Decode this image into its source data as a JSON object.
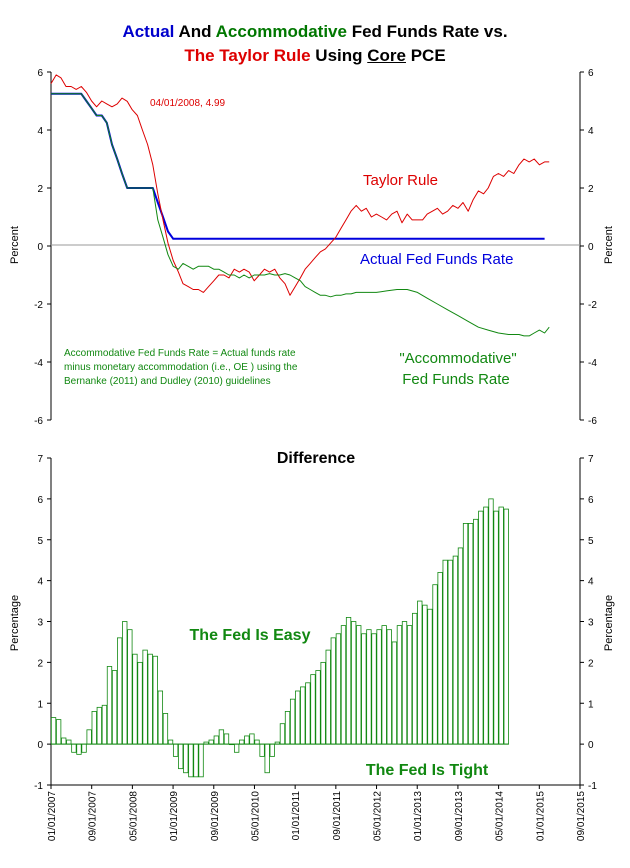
{
  "title": {
    "line1": {
      "part1": "Actual",
      "part2": " And ",
      "part3": "Accommodative",
      "part4": " Fed Funds Rate vs."
    },
    "line2": {
      "part1": "The Taylor Rule",
      "part2": " Using ",
      "part3": "Core",
      "part4": " PCE"
    }
  },
  "colors": {
    "actual": "#0000dd",
    "accommodative": "#118811",
    "taylor": "#dd0000",
    "bars": "#118811"
  },
  "chart_data": [
    {
      "type": "line",
      "ylabel": "Percent",
      "ylim": [
        -6,
        6
      ],
      "yticks": [
        -6,
        -4,
        -2,
        0,
        2,
        4,
        6
      ],
      "xlim": [
        "2007-01-01",
        "2015-09-01"
      ],
      "annotation_point": "04/01/2008, 4.99",
      "note": [
        "Accommodative Fed Funds Rate = Actual funds rate",
        "minus monetary accommodation (i.e., OE ) using the",
        "Bernanke (2011) and Dudley (2010) guidelines"
      ],
      "labels": {
        "taylor": "Taylor Rule",
        "actual": "Actual Fed Funds Rate",
        "accommodative_1": "\"Accommodative\"",
        "accommodative_2": "Fed Funds Rate"
      },
      "series": [
        {
          "name": "Actual Fed Funds Rate",
          "points": [
            [
              "2007-01-01",
              5.25
            ],
            [
              "2007-04-01",
              5.25
            ],
            [
              "2007-07-01",
              5.25
            ],
            [
              "2007-08-01",
              5.0
            ],
            [
              "2007-09-01",
              4.75
            ],
            [
              "2007-10-01",
              4.5
            ],
            [
              "2007-11-01",
              4.5
            ],
            [
              "2007-12-01",
              4.25
            ],
            [
              "2008-01-01",
              3.5
            ],
            [
              "2008-02-01",
              3.0
            ],
            [
              "2008-03-01",
              2.5
            ],
            [
              "2008-04-01",
              2.0
            ],
            [
              "2008-06-01",
              2.0
            ],
            [
              "2008-09-01",
              2.0
            ],
            [
              "2008-10-01",
              1.5
            ],
            [
              "2008-11-01",
              1.0
            ],
            [
              "2008-12-01",
              0.5
            ],
            [
              "2009-01-01",
              0.25
            ],
            [
              "2015-01-01",
              0.25
            ],
            [
              "2015-02-01",
              0.25
            ]
          ]
        },
        {
          "name": "Taylor Rule",
          "points": [
            [
              "2007-01-01",
              5.6
            ],
            [
              "2007-02-01",
              5.9
            ],
            [
              "2007-03-01",
              5.8
            ],
            [
              "2007-04-01",
              5.5
            ],
            [
              "2007-05-01",
              5.5
            ],
            [
              "2007-06-01",
              5.4
            ],
            [
              "2007-07-01",
              5.5
            ],
            [
              "2007-08-01",
              5.3
            ],
            [
              "2007-09-01",
              5.0
            ],
            [
              "2007-10-01",
              4.8
            ],
            [
              "2007-11-01",
              5.0
            ],
            [
              "2007-12-01",
              4.9
            ],
            [
              "2008-01-01",
              4.8
            ],
            [
              "2008-02-01",
              4.9
            ],
            [
              "2008-03-01",
              5.1
            ],
            [
              "2008-04-01",
              4.99
            ],
            [
              "2008-05-01",
              4.7
            ],
            [
              "2008-06-01",
              4.5
            ],
            [
              "2008-07-01",
              4.0
            ],
            [
              "2008-08-01",
              3.5
            ],
            [
              "2008-09-01",
              2.8
            ],
            [
              "2008-10-01",
              1.8
            ],
            [
              "2008-11-01",
              0.9
            ],
            [
              "2008-12-01",
              0.1
            ],
            [
              "2009-01-01",
              -0.5
            ],
            [
              "2009-02-01",
              -0.9
            ],
            [
              "2009-03-01",
              -1.3
            ],
            [
              "2009-04-01",
              -1.4
            ],
            [
              "2009-05-01",
              -1.5
            ],
            [
              "2009-06-01",
              -1.5
            ],
            [
              "2009-07-01",
              -1.6
            ],
            [
              "2009-08-01",
              -1.4
            ],
            [
              "2009-09-01",
              -1.2
            ],
            [
              "2009-10-01",
              -1.0
            ],
            [
              "2009-11-01",
              -1.0
            ],
            [
              "2009-12-01",
              -1.1
            ],
            [
              "2010-01-01",
              -0.8
            ],
            [
              "2010-02-01",
              -0.9
            ],
            [
              "2010-03-01",
              -0.8
            ],
            [
              "2010-04-01",
              -0.9
            ],
            [
              "2010-05-01",
              -1.2
            ],
            [
              "2010-06-01",
              -1.0
            ],
            [
              "2010-07-01",
              -0.8
            ],
            [
              "2010-08-01",
              -0.9
            ],
            [
              "2010-09-01",
              -0.8
            ],
            [
              "2010-10-01",
              -1.1
            ],
            [
              "2010-11-01",
              -1.3
            ],
            [
              "2010-12-01",
              -1.7
            ],
            [
              "2011-01-01",
              -1.4
            ],
            [
              "2011-02-01",
              -1.1
            ],
            [
              "2011-03-01",
              -0.8
            ],
            [
              "2011-04-01",
              -0.6
            ],
            [
              "2011-05-01",
              -0.4
            ],
            [
              "2011-06-01",
              -0.2
            ],
            [
              "2011-07-01",
              -0.1
            ],
            [
              "2011-08-01",
              0.1
            ],
            [
              "2011-09-01",
              0.3
            ],
            [
              "2011-10-01",
              0.6
            ],
            [
              "2011-11-01",
              0.9
            ],
            [
              "2011-12-01",
              1.2
            ],
            [
              "2012-01-01",
              1.4
            ],
            [
              "2012-02-01",
              1.2
            ],
            [
              "2012-03-01",
              1.3
            ],
            [
              "2012-04-01",
              1.0
            ],
            [
              "2012-05-01",
              1.1
            ],
            [
              "2012-06-01",
              1.0
            ],
            [
              "2012-07-01",
              0.9
            ],
            [
              "2012-08-01",
              1.1
            ],
            [
              "2012-09-01",
              1.2
            ],
            [
              "2012-10-01",
              0.8
            ],
            [
              "2012-11-01",
              1.1
            ],
            [
              "2012-12-01",
              0.9
            ],
            [
              "2013-01-01",
              0.9
            ],
            [
              "2013-02-01",
              0.9
            ],
            [
              "2013-03-01",
              1.1
            ],
            [
              "2013-04-01",
              1.2
            ],
            [
              "2013-05-01",
              1.3
            ],
            [
              "2013-06-01",
              1.1
            ],
            [
              "2013-07-01",
              1.2
            ],
            [
              "2013-08-01",
              1.4
            ],
            [
              "2013-09-01",
              1.3
            ],
            [
              "2013-10-01",
              1.5
            ],
            [
              "2013-11-01",
              1.2
            ],
            [
              "2013-12-01",
              1.6
            ],
            [
              "2014-01-01",
              1.9
            ],
            [
              "2014-02-01",
              1.8
            ],
            [
              "2014-03-01",
              2.0
            ],
            [
              "2014-04-01",
              2.4
            ],
            [
              "2014-05-01",
              2.5
            ],
            [
              "2014-06-01",
              2.4
            ],
            [
              "2014-07-01",
              2.6
            ],
            [
              "2014-08-01",
              2.5
            ],
            [
              "2014-09-01",
              2.8
            ],
            [
              "2014-10-01",
              3.0
            ],
            [
              "2014-11-01",
              2.9
            ],
            [
              "2014-12-01",
              3.0
            ],
            [
              "2015-01-01",
              2.8
            ],
            [
              "2015-02-01",
              2.9
            ],
            [
              "2015-03-01",
              2.9
            ]
          ]
        },
        {
          "name": "Accommodative Fed Funds Rate",
          "points": [
            [
              "2007-01-01",
              5.25
            ],
            [
              "2007-07-01",
              5.25
            ],
            [
              "2007-08-01",
              5.0
            ],
            [
              "2007-09-01",
              4.75
            ],
            [
              "2007-10-01",
              4.5
            ],
            [
              "2007-11-01",
              4.5
            ],
            [
              "2007-12-01",
              4.25
            ],
            [
              "2008-01-01",
              3.5
            ],
            [
              "2008-02-01",
              3.0
            ],
            [
              "2008-03-01",
              2.5
            ],
            [
              "2008-04-01",
              2.0
            ],
            [
              "2008-09-01",
              2.0
            ],
            [
              "2008-10-01",
              0.9
            ],
            [
              "2008-11-01",
              0.3
            ],
            [
              "2008-12-01",
              -0.3
            ],
            [
              "2009-01-01",
              -0.7
            ],
            [
              "2009-02-01",
              -0.8
            ],
            [
              "2009-03-01",
              -0.6
            ],
            [
              "2009-04-01",
              -0.7
            ],
            [
              "2009-05-01",
              -0.8
            ],
            [
              "2009-06-01",
              -0.7
            ],
            [
              "2009-07-01",
              -0.7
            ],
            [
              "2009-08-01",
              -0.7
            ],
            [
              "2009-09-01",
              -0.8
            ],
            [
              "2009-10-01",
              -0.8
            ],
            [
              "2009-11-01",
              -0.9
            ],
            [
              "2009-12-01",
              -1.0
            ],
            [
              "2010-01-01",
              -1.0
            ],
            [
              "2010-02-01",
              -1.1
            ],
            [
              "2010-03-01",
              -1.0
            ],
            [
              "2010-04-01",
              -1.1
            ],
            [
              "2010-05-01",
              -1.0
            ],
            [
              "2010-06-01",
              -1.0
            ],
            [
              "2010-07-01",
              -1.0
            ],
            [
              "2010-08-01",
              -0.95
            ],
            [
              "2010-09-01",
              -1.0
            ],
            [
              "2010-10-01",
              -1.0
            ],
            [
              "2010-11-01",
              -0.95
            ],
            [
              "2010-12-01",
              -1.0
            ],
            [
              "2011-01-01",
              -1.1
            ],
            [
              "2011-02-01",
              -1.2
            ],
            [
              "2011-03-01",
              -1.4
            ],
            [
              "2011-04-01",
              -1.5
            ],
            [
              "2011-05-01",
              -1.6
            ],
            [
              "2011-06-01",
              -1.7
            ],
            [
              "2011-07-01",
              -1.7
            ],
            [
              "2011-08-01",
              -1.75
            ],
            [
              "2011-09-01",
              -1.7
            ],
            [
              "2011-10-01",
              -1.7
            ],
            [
              "2011-11-01",
              -1.65
            ],
            [
              "2011-12-01",
              -1.65
            ],
            [
              "2012-01-01",
              -1.6
            ],
            [
              "2012-03-01",
              -1.6
            ],
            [
              "2012-05-01",
              -1.6
            ],
            [
              "2012-07-01",
              -1.55
            ],
            [
              "2012-09-01",
              -1.5
            ],
            [
              "2012-11-01",
              -1.5
            ],
            [
              "2013-01-01",
              -1.6
            ],
            [
              "2013-03-01",
              -1.8
            ],
            [
              "2013-05-01",
              -2.0
            ],
            [
              "2013-07-01",
              -2.2
            ],
            [
              "2013-09-01",
              -2.4
            ],
            [
              "2013-11-01",
              -2.6
            ],
            [
              "2014-01-01",
              -2.8
            ],
            [
              "2014-03-01",
              -2.9
            ],
            [
              "2014-05-01",
              -3.0
            ],
            [
              "2014-07-01",
              -3.05
            ],
            [
              "2014-09-01",
              -3.05
            ],
            [
              "2014-10-01",
              -3.1
            ],
            [
              "2014-11-01",
              -3.1
            ],
            [
              "2014-12-01",
              -3.0
            ],
            [
              "2015-01-01",
              -2.9
            ],
            [
              "2015-02-01",
              -3.0
            ],
            [
              "2015-03-01",
              -2.8
            ]
          ]
        }
      ]
    },
    {
      "type": "bar",
      "title": "Difference",
      "ylabel": "Percentage",
      "ylim": [
        -1,
        7
      ],
      "yticks": [
        -1,
        0,
        1,
        2,
        3,
        4,
        5,
        6,
        7
      ],
      "start": "2007-01-01",
      "frequency": "monthly",
      "easy_label": "The Fed Is Easy",
      "tight_label": "The Fed Is Tight",
      "xtick_labels": [
        "01/01/2007",
        "09/01/2007",
        "05/01/2008",
        "01/01/2009",
        "09/01/2009",
        "05/01/2010",
        "01/01/2011",
        "09/01/2011",
        "05/01/2012",
        "01/01/2013",
        "09/01/2013",
        "05/01/2014",
        "01/01/2015",
        "09/01/2015"
      ],
      "values": [
        0.65,
        0.6,
        0.15,
        0.1,
        -0.2,
        -0.25,
        -0.2,
        0.35,
        0.8,
        0.9,
        0.95,
        1.9,
        1.8,
        2.6,
        3.0,
        2.8,
        2.2,
        2.0,
        2.3,
        2.2,
        2.15,
        1.3,
        0.75,
        0.1,
        -0.3,
        -0.6,
        -0.7,
        -0.8,
        -0.8,
        -0.8,
        0.05,
        0.1,
        0.2,
        0.35,
        0.25,
        0.0,
        -0.2,
        0.1,
        0.2,
        0.25,
        0.1,
        -0.3,
        -0.7,
        -0.3,
        0.05,
        0.5,
        0.8,
        1.1,
        1.3,
        1.4,
        1.5,
        1.7,
        1.8,
        2.0,
        2.3,
        2.6,
        2.7,
        2.9,
        3.1,
        3.0,
        2.9,
        2.7,
        2.8,
        2.7,
        2.8,
        2.9,
        2.8,
        2.5,
        2.9,
        3.0,
        2.9,
        3.2,
        3.5,
        3.4,
        3.3,
        3.9,
        4.2,
        4.5,
        4.5,
        4.6,
        4.8,
        5.4,
        5.4,
        5.5,
        5.7,
        5.8,
        6.0,
        5.7,
        5.8,
        5.75
      ]
    }
  ]
}
